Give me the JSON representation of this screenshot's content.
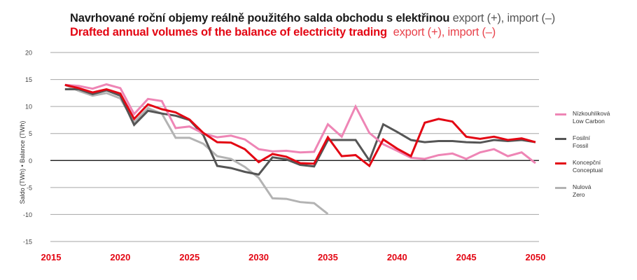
{
  "title": {
    "cz_bold": "Navrhované roční objemy reálně použitého salda obchodu s elektřinou",
    "cz_light": " export (+), import (–)",
    "en_bold": "Drafted annual volumes of the balance of electricity trading",
    "en_light": "  export (+), import (–)"
  },
  "axis": {
    "ylabel": "Saldo (TWh) • Balance (TWh)"
  },
  "colors": {
    "low_carbon": "#ee85b5",
    "fossil": "#555555",
    "conceptual": "#e30613",
    "zero": "#b3b3b3",
    "grid": "#a6a6a6",
    "zero_line": "#000000",
    "x_tick": "#e30613",
    "y_tick": "#444444"
  },
  "legend": [
    {
      "key": "low_carbon",
      "cz": "Nízkouhlíková",
      "en": "Low Carbon"
    },
    {
      "key": "fossil",
      "cz": "Fosilní",
      "en": "Fossil"
    },
    {
      "key": "conceptual",
      "cz": "Koncepční",
      "en": "Conceptual"
    },
    {
      "key": "zero",
      "cz": "Nulová",
      "en": "Zero"
    }
  ],
  "chart_data": {
    "type": "line",
    "title": "Navrhované roční objemy reálně použitého salda obchodu s elektřinou export (+), import (–) / Drafted annual volumes of the balance of electricity trading export (+), import (–)",
    "xlabel": "",
    "ylabel": "Saldo (TWh) • Balance (TWh)",
    "xlim": [
      2015,
      2050
    ],
    "ylim": [
      -15,
      20
    ],
    "x_ticks": [
      2015,
      2020,
      2025,
      2030,
      2035,
      2040,
      2045,
      2050
    ],
    "y_ticks": [
      20,
      15,
      10,
      5,
      0,
      -5,
      -10,
      -15
    ],
    "grid": true,
    "legend_position": "right",
    "x": [
      2016,
      2017,
      2018,
      2019,
      2020,
      2021,
      2022,
      2023,
      2024,
      2025,
      2026,
      2027,
      2028,
      2029,
      2030,
      2031,
      2032,
      2033,
      2034,
      2035,
      2036,
      2037,
      2038,
      2039,
      2040,
      2041,
      2042,
      2043,
      2044,
      2045,
      2046,
      2047,
      2048,
      2049,
      2050
    ],
    "series": [
      {
        "key": "zero",
        "name": "Nulová / Zero",
        "values": [
          14.0,
          12.9,
          12.0,
          12.5,
          11.5,
          7.1,
          9.7,
          8.7,
          4.2,
          4.2,
          3.1,
          0.8,
          0.3,
          -1.2,
          -3.2,
          -7.0,
          -7.1,
          -7.7,
          -7.9,
          -9.9,
          null,
          null,
          null,
          null,
          null,
          null,
          null,
          null,
          null,
          null,
          null,
          null,
          null,
          null,
          null
        ]
      },
      {
        "key": "fossil",
        "name": "Fosilní / Fossil",
        "values": [
          13.2,
          13.2,
          12.3,
          13.0,
          12.0,
          6.6,
          9.2,
          8.7,
          8.3,
          7.5,
          4.7,
          -1.0,
          -1.4,
          -2.1,
          -2.6,
          0.6,
          0.2,
          -0.8,
          -1.1,
          3.8,
          3.8,
          3.8,
          0.0,
          6.7,
          5.3,
          3.8,
          3.4,
          3.6,
          3.6,
          3.4,
          3.3,
          3.8,
          3.6,
          3.8,
          3.4
        ]
      },
      {
        "key": "low_carbon",
        "name": "Nízkouhlíková / Low Carbon",
        "values": [
          14.0,
          13.8,
          13.3,
          14.1,
          13.4,
          8.6,
          11.4,
          11.0,
          6.0,
          6.3,
          5.0,
          4.3,
          4.6,
          3.9,
          2.1,
          1.7,
          1.8,
          1.5,
          1.6,
          6.7,
          4.4,
          10.0,
          5.1,
          3.0,
          1.8,
          0.5,
          0.3,
          1.0,
          1.3,
          0.3,
          1.5,
          2.1,
          0.8,
          1.5,
          -0.5
        ]
      },
      {
        "key": "conceptual",
        "name": "Koncepční / Conceptual",
        "values": [
          14.0,
          13.4,
          12.6,
          13.2,
          12.4,
          7.7,
          10.4,
          9.5,
          8.9,
          7.6,
          5.1,
          3.4,
          3.3,
          2.1,
          -0.3,
          1.2,
          0.7,
          -0.5,
          -0.6,
          4.3,
          0.8,
          1.0,
          -1.0,
          3.9,
          2.2,
          0.8,
          7.0,
          7.7,
          7.2,
          4.4,
          4.0,
          4.4,
          3.8,
          4.1,
          3.4
        ]
      }
    ]
  }
}
